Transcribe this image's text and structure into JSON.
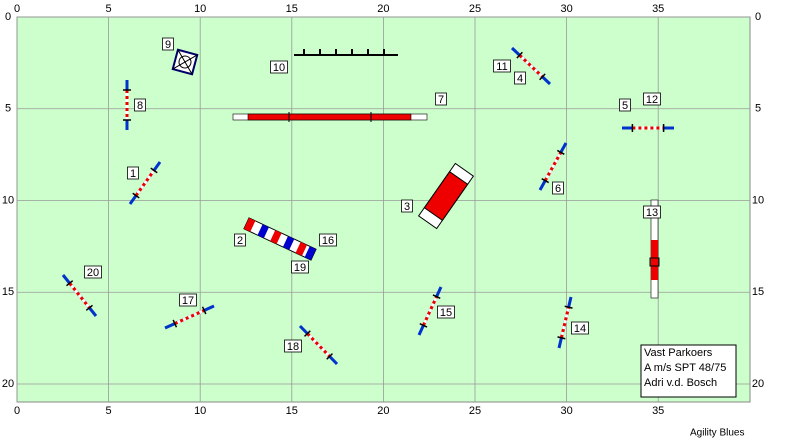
{
  "axes": {
    "xticks": [
      0,
      5,
      10,
      15,
      20,
      25,
      30,
      35
    ],
    "yticks": [
      0,
      5,
      10,
      15,
      20
    ]
  },
  "obstacles": [
    {
      "label": "9"
    },
    {
      "label": "10"
    },
    {
      "label": "11"
    },
    {
      "label": "4"
    },
    {
      "label": "8"
    },
    {
      "label": "7"
    },
    {
      "label": "5"
    },
    {
      "label": "12"
    },
    {
      "label": "1"
    },
    {
      "label": "6"
    },
    {
      "label": "3"
    },
    {
      "label": "13"
    },
    {
      "label": "2"
    },
    {
      "label": "16"
    },
    {
      "label": "19"
    },
    {
      "label": "20"
    },
    {
      "label": "17"
    },
    {
      "label": "15"
    },
    {
      "label": "14"
    },
    {
      "label": "18"
    }
  ],
  "info": {
    "lines": [
      "Vast Parkoers",
      "A m/s SPT 48/75",
      "Adri v.d. Bosch"
    ]
  },
  "footer": "Agility Blues"
}
